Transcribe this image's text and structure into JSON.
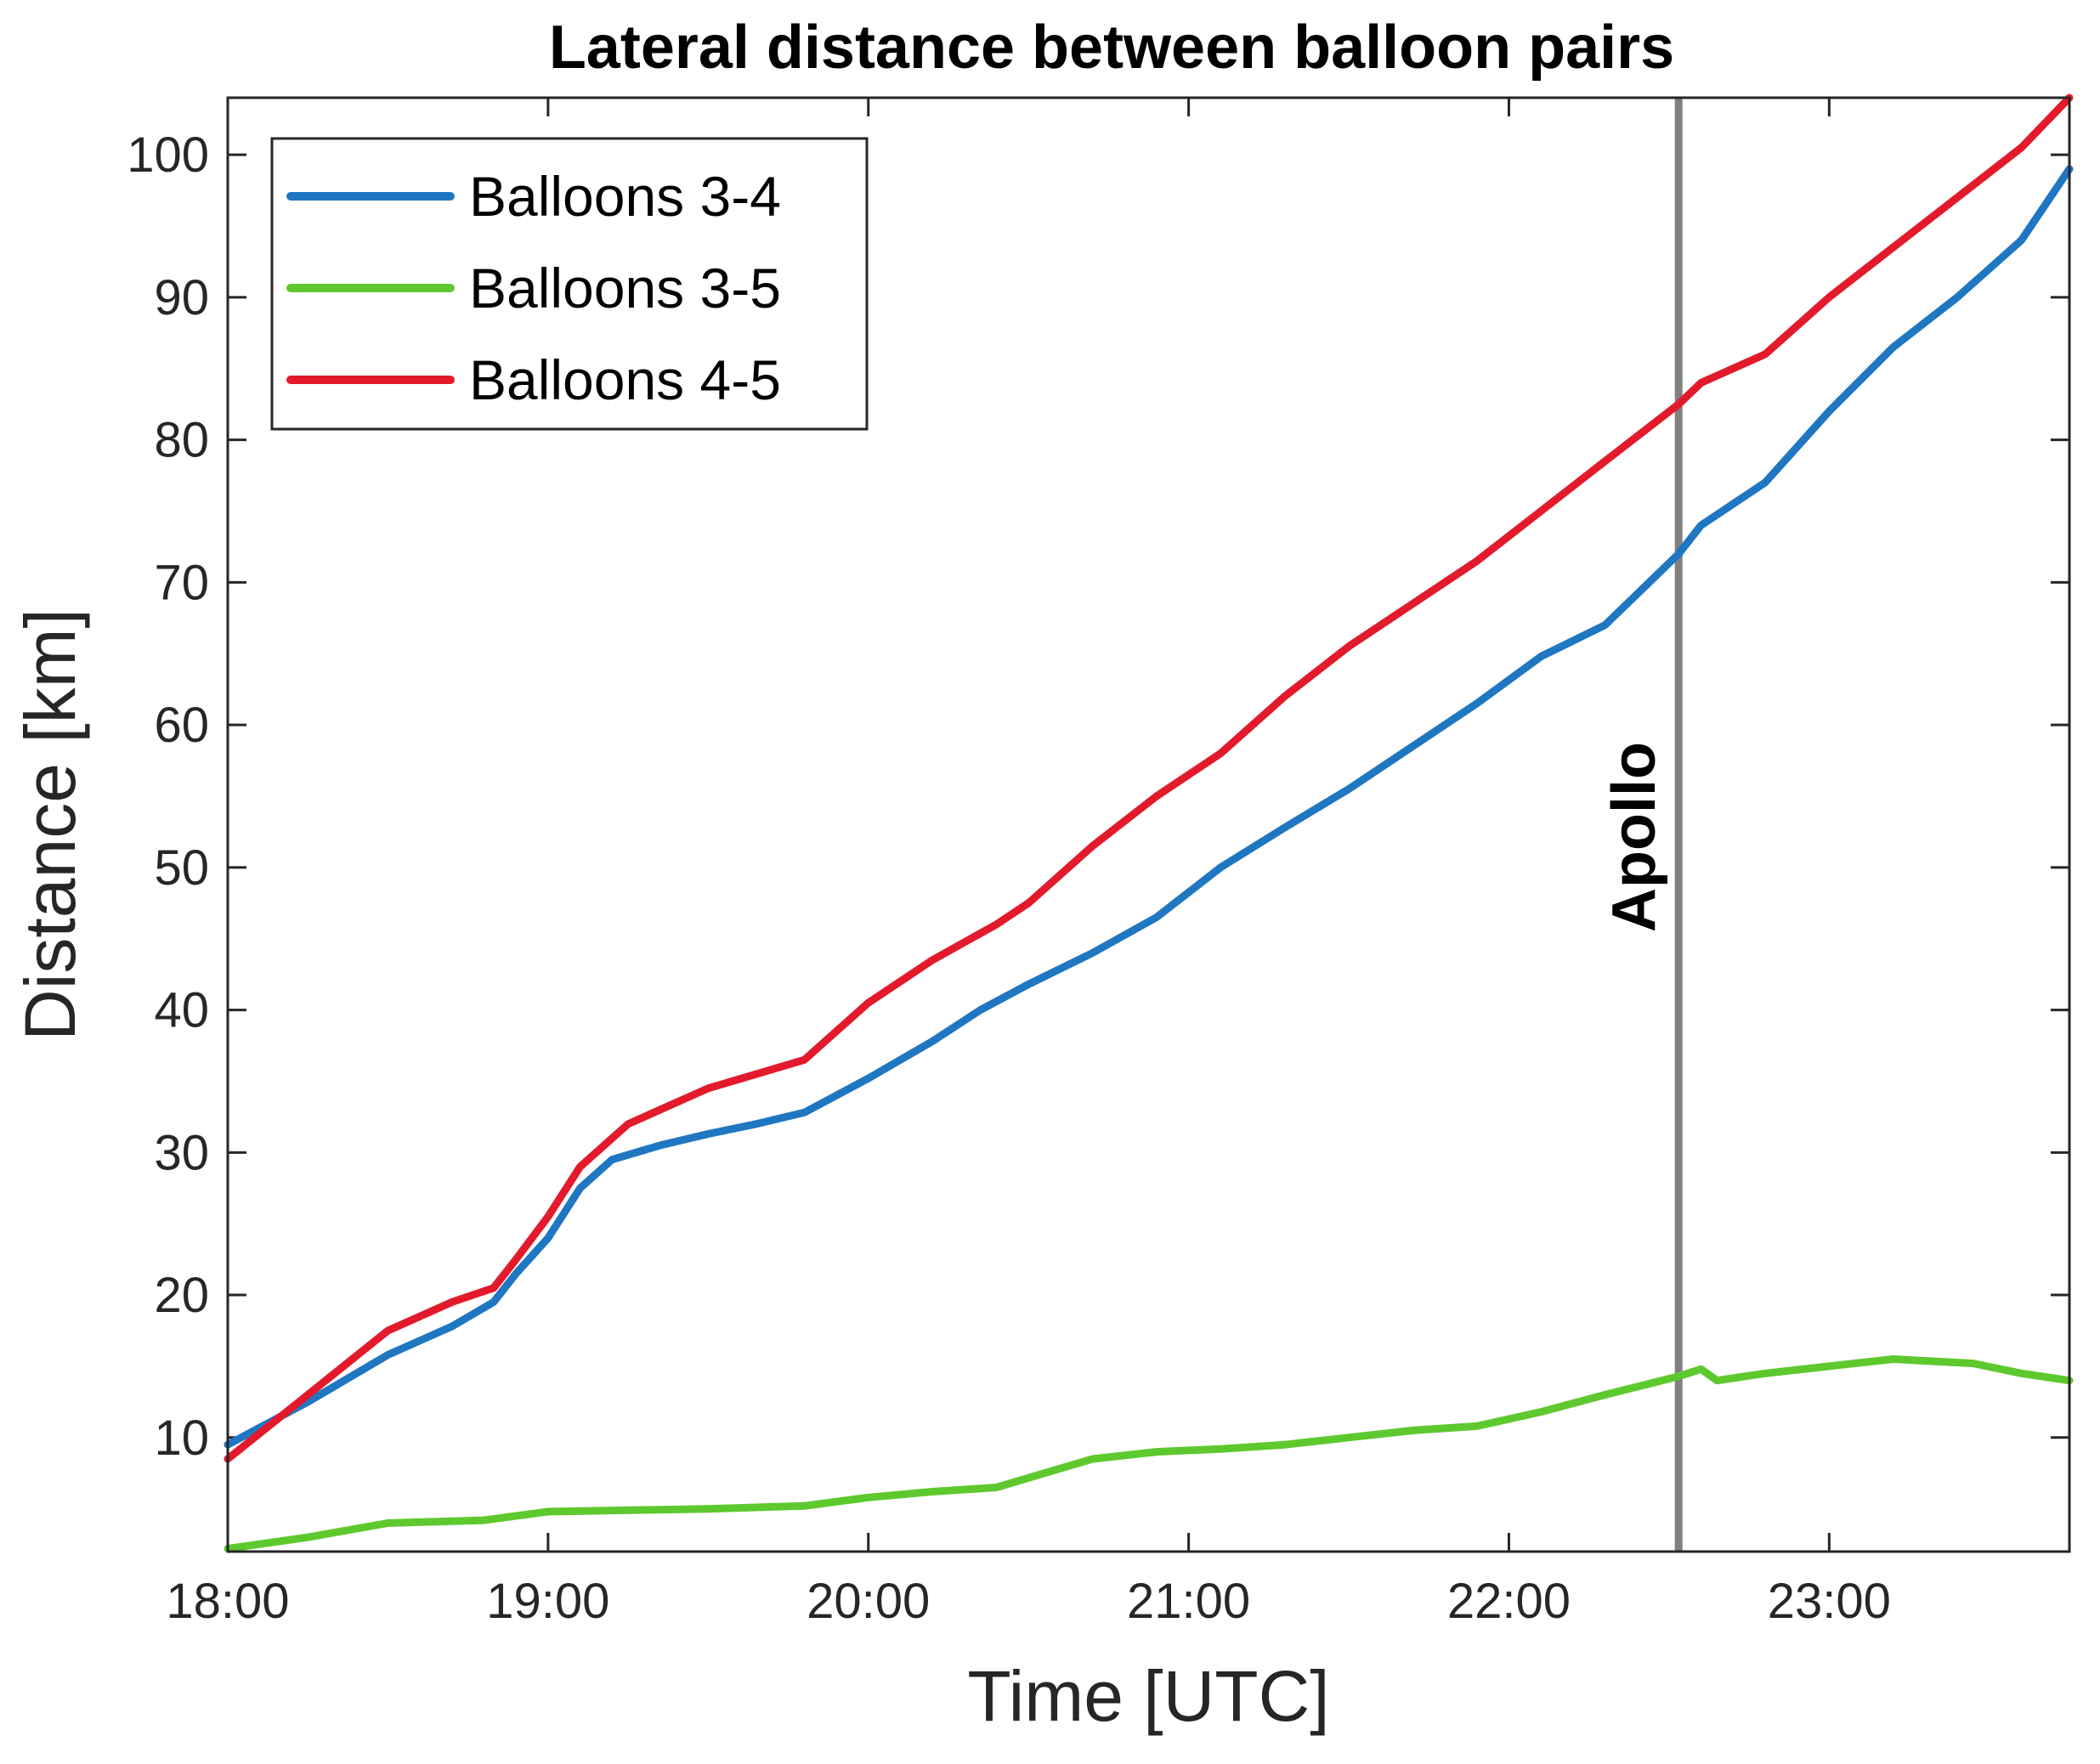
{
  "chart_data": {
    "type": "line",
    "title": "Lateral distance between balloon pairs",
    "xlabel": "Time [UTC]",
    "ylabel": "Distance [km]",
    "x_unit": "hours UTC",
    "xlim": [
      18.0,
      23.75
    ],
    "ylim": [
      2,
      104
    ],
    "xticks": [
      18,
      19,
      20,
      21,
      22,
      23
    ],
    "xtick_labels": [
      "18:00",
      "19:00",
      "20:00",
      "21:00",
      "22:00",
      "23:00"
    ],
    "yticks": [
      10,
      20,
      30,
      40,
      50,
      60,
      70,
      80,
      90,
      100
    ],
    "ytick_labels": [
      "10",
      "20",
      "30",
      "40",
      "50",
      "60",
      "70",
      "80",
      "90",
      "100"
    ],
    "grid": false,
    "legend_position": "top-left",
    "series": [
      {
        "name": "Balloons 3-4",
        "color": "#1f77c2",
        "x": [
          18.0,
          18.25,
          18.5,
          18.7,
          18.83,
          18.9,
          19.0,
          19.1,
          19.2,
          19.35,
          19.5,
          19.65,
          19.8,
          20.0,
          20.2,
          20.35,
          20.5,
          20.7,
          20.9,
          21.1,
          21.3,
          21.5,
          21.7,
          21.9,
          22.1,
          22.3,
          22.53,
          22.6,
          22.8,
          23.0,
          23.2,
          23.4,
          23.6,
          23.75
        ],
        "values": [
          9.5,
          12.5,
          15.8,
          17.8,
          19.5,
          21.5,
          24.0,
          27.5,
          29.5,
          30.5,
          31.3,
          32.0,
          32.8,
          35.2,
          37.8,
          40.0,
          41.8,
          44.0,
          46.5,
          50.0,
          52.8,
          55.5,
          58.5,
          61.5,
          64.8,
          67.0,
          72.0,
          74.0,
          77.0,
          82.0,
          86.5,
          90.0,
          94.0,
          99.0
        ]
      },
      {
        "name": "Balloons 3-5",
        "color": "#5ec92e",
        "x": [
          18.0,
          18.25,
          18.5,
          18.8,
          19.0,
          19.5,
          19.8,
          20.0,
          20.2,
          20.4,
          20.55,
          20.7,
          20.9,
          21.1,
          21.3,
          21.5,
          21.7,
          21.9,
          22.1,
          22.3,
          22.53,
          22.6,
          22.65,
          22.8,
          23.0,
          23.2,
          23.45,
          23.6,
          23.75
        ],
        "values": [
          2.2,
          3.0,
          4.0,
          4.2,
          4.8,
          5.0,
          5.2,
          5.8,
          6.2,
          6.5,
          7.5,
          8.5,
          9.0,
          9.2,
          9.5,
          10.0,
          10.5,
          10.8,
          11.8,
          13.0,
          14.3,
          14.8,
          14.0,
          14.5,
          15.0,
          15.5,
          15.2,
          14.5,
          14.0
        ]
      },
      {
        "name": "Balloons 4-5",
        "color": "#e31a2b",
        "x": [
          18.0,
          18.25,
          18.5,
          18.7,
          18.83,
          18.9,
          19.0,
          19.1,
          19.25,
          19.5,
          19.65,
          19.8,
          19.9,
          20.0,
          20.2,
          20.4,
          20.5,
          20.7,
          20.9,
          21.1,
          21.3,
          21.5,
          21.7,
          21.9,
          22.1,
          22.3,
          22.53,
          22.6,
          22.8,
          23.0,
          23.2,
          23.4,
          23.6,
          23.75
        ],
        "values": [
          8.5,
          13.0,
          17.5,
          19.5,
          20.5,
          22.5,
          25.5,
          29.0,
          32.0,
          34.5,
          35.5,
          36.5,
          38.5,
          40.5,
          43.5,
          46.0,
          47.5,
          51.5,
          55.0,
          58.0,
          62.0,
          65.5,
          68.5,
          71.5,
          75.0,
          78.5,
          82.5,
          84.0,
          86.0,
          90.0,
          93.5,
          97.0,
          100.5,
          104.0
        ]
      }
    ],
    "annotations": [
      {
        "type": "vline",
        "x": 22.53,
        "label": "Apollo",
        "color": "#808080"
      }
    ]
  }
}
